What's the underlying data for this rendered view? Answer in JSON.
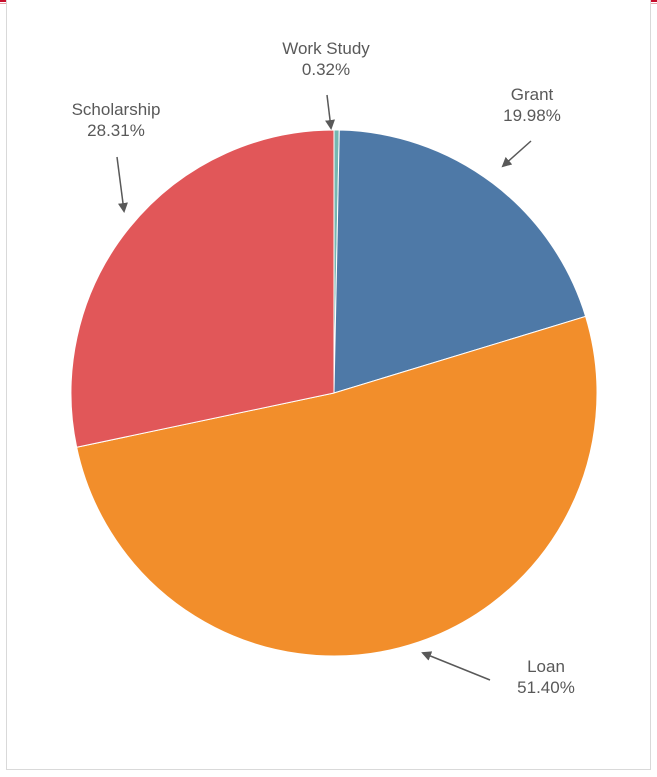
{
  "chart_data": {
    "type": "pie",
    "title": "",
    "start_angle_deg": 0,
    "direction": "clockwise",
    "slices": [
      {
        "label": "Work Study",
        "value": 0.32,
        "value_text": "0.32%",
        "color": "#76b7b2"
      },
      {
        "label": "Grant",
        "value": 19.98,
        "value_text": "19.98%",
        "color": "#4e79a7"
      },
      {
        "label": "Loan",
        "value": 51.4,
        "value_text": "51.40%",
        "color": "#f28e2b"
      },
      {
        "label": "Scholarship",
        "value": 28.31,
        "value_text": "28.31%",
        "color": "#e15759"
      }
    ],
    "slice_border_color": "#ffffff",
    "label_color": "#595959",
    "leader_color": "#595959"
  },
  "frame": {
    "accent_color": "#c8102e"
  }
}
